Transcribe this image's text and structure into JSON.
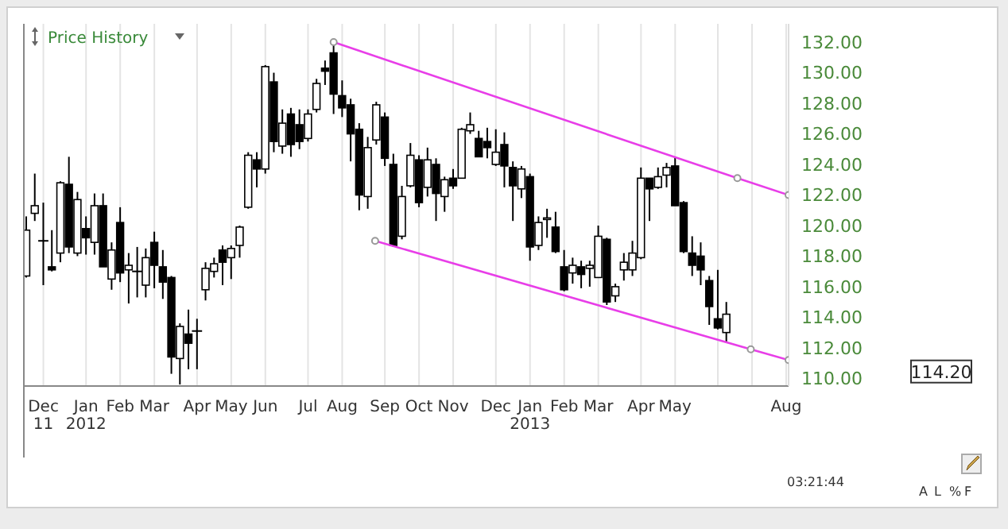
{
  "chart_data": {
    "type": "candlestick",
    "title": "Price History",
    "x": [
      "2011-11-18",
      "2011-11-25",
      "2011-12-02",
      "2011-12-09",
      "2011-12-16",
      "2011-12-23",
      "2011-12-30",
      "2012-01-06",
      "2012-01-13",
      "2012-01-20",
      "2012-01-27",
      "2012-02-03",
      "2012-02-10",
      "2012-02-17",
      "2012-02-24",
      "2012-03-02",
      "2012-03-09",
      "2012-03-16",
      "2012-03-23",
      "2012-03-30",
      "2012-04-06",
      "2012-04-13",
      "2012-04-20",
      "2012-04-27",
      "2012-05-04",
      "2012-05-11",
      "2012-05-18",
      "2012-05-25",
      "2012-06-01",
      "2012-06-08",
      "2012-06-15",
      "2012-06-22",
      "2012-06-29",
      "2012-07-06",
      "2012-07-13",
      "2012-07-20",
      "2012-07-27",
      "2012-08-03",
      "2012-08-10",
      "2012-08-17",
      "2012-08-24",
      "2012-08-31",
      "2012-09-07",
      "2012-09-14",
      "2012-09-21",
      "2012-09-28",
      "2012-10-05",
      "2012-10-12",
      "2012-10-19",
      "2012-10-26",
      "2012-11-02",
      "2012-11-09",
      "2012-11-16",
      "2012-11-23",
      "2012-11-30",
      "2012-12-07",
      "2012-12-14",
      "2012-12-21",
      "2012-12-28",
      "2013-01-04",
      "2013-01-11",
      "2013-01-18",
      "2013-01-25",
      "2013-02-01",
      "2013-02-08",
      "2013-02-15",
      "2013-02-22",
      "2013-03-01",
      "2013-03-08",
      "2013-03-15",
      "2013-03-22",
      "2013-03-29",
      "2013-04-05",
      "2013-04-12",
      "2013-04-19",
      "2013-04-26",
      "2013-05-03",
      "2013-05-10",
      "2013-05-17",
      "2013-05-24",
      "2013-05-31",
      "2013-06-07",
      "2013-06-14"
    ],
    "ohlc": [
      [
        116.7,
        120.6,
        116.6,
        119.7
      ],
      [
        120.8,
        123.4,
        120.3,
        121.3
      ],
      [
        119.0,
        121.5,
        116.1,
        119.0
      ],
      [
        117.3,
        119.7,
        117.0,
        117.1
      ],
      [
        118.2,
        122.9,
        117.6,
        122.8
      ],
      [
        122.7,
        124.5,
        118.2,
        118.6
      ],
      [
        118.2,
        122.2,
        118.0,
        121.7
      ],
      [
        119.8,
        120.6,
        118.1,
        119.2
      ],
      [
        118.9,
        122.1,
        118.1,
        121.3
      ],
      [
        121.3,
        122.1,
        117.3,
        117.3
      ],
      [
        116.5,
        118.9,
        115.8,
        118.4
      ],
      [
        120.2,
        121.2,
        116.3,
        116.9
      ],
      [
        117.1,
        118.2,
        114.9,
        117.4
      ],
      [
        117.0,
        118.6,
        115.3,
        117.0
      ],
      [
        116.1,
        118.5,
        115.3,
        117.9
      ],
      [
        118.9,
        119.6,
        115.9,
        117.4
      ],
      [
        117.3,
        118.4,
        115.2,
        116.3
      ],
      [
        116.6,
        116.7,
        110.3,
        111.4
      ],
      [
        111.3,
        113.6,
        109.6,
        113.4
      ],
      [
        112.9,
        114.5,
        110.6,
        112.3
      ],
      [
        113.1,
        113.9,
        110.6,
        113.1
      ],
      [
        115.8,
        117.6,
        115.1,
        117.2
      ],
      [
        117.0,
        117.9,
        116.6,
        117.5
      ],
      [
        118.4,
        118.7,
        116.1,
        117.6
      ],
      [
        117.9,
        118.7,
        116.5,
        118.5
      ],
      [
        118.7,
        120.0,
        117.9,
        119.9
      ],
      [
        121.2,
        124.8,
        121.1,
        124.6
      ],
      [
        124.3,
        124.8,
        122.5,
        123.7
      ],
      [
        123.7,
        130.5,
        123.4,
        130.4
      ],
      [
        129.4,
        130.0,
        124.8,
        125.5
      ],
      [
        125.2,
        127.6,
        124.7,
        126.7
      ],
      [
        127.3,
        127.7,
        124.5,
        125.3
      ],
      [
        126.6,
        127.6,
        125.0,
        125.5
      ],
      [
        125.7,
        127.6,
        125.5,
        127.3
      ],
      [
        127.6,
        129.6,
        127.4,
        129.3
      ],
      [
        130.3,
        130.8,
        129.2,
        130.1
      ],
      [
        131.3,
        132.0,
        127.3,
        128.6
      ],
      [
        128.5,
        129.5,
        127.1,
        127.7
      ],
      [
        127.9,
        128.3,
        124.2,
        126.0
      ],
      [
        126.3,
        126.7,
        121.0,
        122.0
      ],
      [
        121.9,
        125.8,
        121.1,
        125.1
      ],
      [
        125.6,
        128.1,
        125.3,
        127.9
      ],
      [
        127.1,
        127.4,
        123.9,
        124.4
      ],
      [
        124.0,
        124.7,
        118.6,
        118.7
      ],
      [
        119.3,
        122.6,
        119.1,
        121.9
      ],
      [
        122.6,
        125.4,
        122.5,
        124.6
      ],
      [
        124.3,
        124.6,
        121.2,
        121.5
      ],
      [
        122.5,
        125.1,
        121.9,
        124.3
      ],
      [
        124.0,
        124.4,
        120.3,
        122.1
      ],
      [
        121.9,
        123.2,
        120.9,
        123.0
      ],
      [
        123.1,
        123.7,
        122.4,
        122.6
      ],
      [
        123.1,
        126.4,
        123.1,
        126.3
      ],
      [
        126.2,
        127.4,
        126.0,
        126.6
      ],
      [
        125.7,
        126.2,
        124.5,
        124.5
      ],
      [
        125.5,
        126.4,
        124.4,
        125.1
      ],
      [
        124.0,
        126.3,
        123.9,
        124.8
      ],
      [
        125.3,
        126.1,
        122.5,
        123.9
      ],
      [
        123.8,
        124.2,
        120.3,
        122.6
      ],
      [
        122.4,
        123.9,
        121.8,
        123.7
      ],
      [
        123.2,
        123.4,
        117.7,
        118.6
      ],
      [
        118.7,
        120.6,
        118.4,
        120.2
      ],
      [
        120.4,
        121.1,
        119.2,
        120.5
      ],
      [
        119.9,
        120.9,
        118.2,
        118.3
      ],
      [
        117.3,
        118.4,
        115.7,
        115.8
      ],
      [
        116.9,
        117.9,
        116.2,
        117.4
      ],
      [
        117.3,
        117.7,
        115.9,
        116.8
      ],
      [
        117.2,
        117.7,
        116.0,
        117.4
      ],
      [
        116.6,
        120.0,
        116.6,
        119.3
      ],
      [
        119.1,
        119.2,
        114.8,
        115.0
      ],
      [
        115.4,
        116.2,
        115.0,
        116.0
      ],
      [
        117.1,
        118.2,
        116.4,
        117.6
      ],
      [
        117.1,
        119.0,
        116.7,
        118.2
      ],
      [
        117.9,
        123.8,
        117.8,
        123.1
      ],
      [
        123.1,
        123.1,
        120.3,
        122.4
      ],
      [
        122.5,
        123.8,
        122.4,
        123.2
      ],
      [
        123.3,
        124.1,
        122.5,
        123.8
      ],
      [
        123.9,
        124.5,
        121.3,
        121.3
      ],
      [
        121.5,
        121.6,
        118.2,
        118.3
      ],
      [
        118.2,
        119.3,
        116.7,
        117.4
      ],
      [
        118.0,
        118.9,
        116.1,
        117.1
      ],
      [
        116.4,
        116.7,
        113.5,
        114.7
      ],
      [
        113.9,
        117.1,
        113.2,
        113.3
      ],
      [
        113.0,
        115.0,
        112.4,
        114.2
      ]
    ],
    "series": [
      {
        "type": "line",
        "color": "#e83ee8",
        "marker": "circle",
        "x": [
          "2012-07-27",
          "2013-06-23",
          "2013-08-04"
        ],
        "values": [
          132.0,
          123.1,
          122.0
        ]
      },
      {
        "type": "line",
        "color": "#e83ee8",
        "marker": "circle",
        "x": [
          "2012-08-30",
          "2013-07-04",
          "2013-08-04"
        ],
        "values": [
          119.0,
          111.9,
          111.2
        ]
      }
    ],
    "xlim": [
      "2011-11-16",
      "2013-08-04"
    ],
    "xticks": [
      {
        "value": "2011-12-02",
        "label": "Dec\n11"
      },
      {
        "value": "2012-01-06",
        "label": "Jan\n2012"
      },
      {
        "value": "2012-02-03",
        "label": "Feb"
      },
      {
        "value": "2012-03-02",
        "label": "Mar"
      },
      {
        "value": "2012-04-06",
        "label": "Apr"
      },
      {
        "value": "2012-05-04",
        "label": "May"
      },
      {
        "value": "2012-06-01",
        "label": "Jun"
      },
      {
        "value": "2012-07-06",
        "label": "Jul"
      },
      {
        "value": "2012-08-03",
        "label": "Aug"
      },
      {
        "value": "2012-09-07",
        "label": "Sep"
      },
      {
        "value": "2012-10-05",
        "label": "Oct"
      },
      {
        "value": "2012-11-02",
        "label": "Nov"
      },
      {
        "value": "2012-12-07",
        "label": "Dec"
      },
      {
        "value": "2013-01-04",
        "label": "Jan\n2013"
      },
      {
        "value": "2013-02-01",
        "label": "Feb"
      },
      {
        "value": "2013-03-01",
        "label": "Mar"
      },
      {
        "value": "2013-04-05",
        "label": "Apr"
      },
      {
        "value": "2013-05-03",
        "label": "May"
      },
      {
        "value": "2013-06-07",
        "label": null
      },
      {
        "value": "2013-07-05",
        "label": null
      },
      {
        "value": "2013-08-02",
        "label": "Aug"
      }
    ],
    "ylim": [
      109.5,
      133.2
    ],
    "yticks": [
      {
        "value": 110,
        "label": "110.00"
      },
      {
        "value": 112,
        "label": "112.00"
      },
      {
        "value": 114,
        "label": "114.00"
      },
      {
        "value": 116,
        "label": "116.00"
      },
      {
        "value": 118,
        "label": "118.00"
      },
      {
        "value": 120,
        "label": "120.00"
      },
      {
        "value": 122,
        "label": "122.00"
      },
      {
        "value": 124,
        "label": "124.00"
      },
      {
        "value": 126,
        "label": "126.00"
      },
      {
        "value": 128,
        "label": "128.00"
      },
      {
        "value": 130,
        "label": "130.00"
      },
      {
        "value": 132,
        "label": "132.00"
      }
    ],
    "grid": "x",
    "annotations": [
      "114.20",
      "03:21:44",
      "A",
      "L",
      "%",
      "F"
    ]
  }
}
